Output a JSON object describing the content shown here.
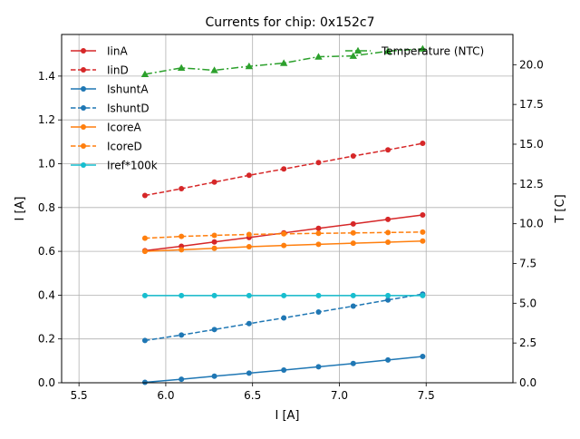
{
  "chart_data": {
    "type": "line",
    "title": "Currents for chip: 0x152c7",
    "xlabel": "I [A]",
    "ylabel": "I [A]",
    "y2label": "T [C]",
    "xlim": [
      5.4,
      8.0
    ],
    "ylim": [
      0.0,
      1.59
    ],
    "y2lim": [
      0.0,
      21.9
    ],
    "xticks": [
      "5.5",
      "6.0",
      "6.5",
      "7.0",
      "7.5"
    ],
    "yticks": [
      "0.0",
      "0.2",
      "0.4",
      "0.6",
      "0.8",
      "1.0",
      "1.2",
      "1.4"
    ],
    "y2ticks": [
      "0.0",
      "2.5",
      "5.0",
      "7.5",
      "10.0",
      "12.5",
      "15.0",
      "17.5",
      "20.0"
    ],
    "grid": true,
    "legend_left": "upper-left",
    "legend_right": "upper-right",
    "x": [
      5.88,
      6.09,
      6.28,
      6.48,
      6.68,
      6.88,
      7.08,
      7.28,
      7.48
    ],
    "series": [
      {
        "name": "IinA",
        "axis": "left",
        "color": "#d62728",
        "style": "solid",
        "marker": "circle",
        "values": [
          0.603,
          0.623,
          0.643,
          0.663,
          0.684,
          0.705,
          0.725,
          0.746,
          0.766
        ]
      },
      {
        "name": "IinD",
        "axis": "left",
        "color": "#d62728",
        "style": "dashed",
        "marker": "circle",
        "values": [
          0.855,
          0.886,
          0.916,
          0.947,
          0.976,
          1.005,
          1.035,
          1.063,
          1.093
        ]
      },
      {
        "name": "IshuntA",
        "axis": "left",
        "color": "#1f77b4",
        "style": "solid",
        "marker": "circle",
        "values": [
          0.002,
          0.016,
          0.03,
          0.044,
          0.058,
          0.073,
          0.088,
          0.104,
          0.12
        ]
      },
      {
        "name": "IshuntD",
        "axis": "left",
        "color": "#1f77b4",
        "style": "dashed",
        "marker": "circle",
        "values": [
          0.193,
          0.218,
          0.243,
          0.27,
          0.296,
          0.323,
          0.35,
          0.378,
          0.405
        ]
      },
      {
        "name": "IcoreA",
        "axis": "left",
        "color": "#ff7f0e",
        "style": "solid",
        "marker": "circle",
        "values": [
          0.6,
          0.607,
          0.614,
          0.621,
          0.627,
          0.632,
          0.637,
          0.642,
          0.647
        ]
      },
      {
        "name": "IcoreD",
        "axis": "left",
        "color": "#ff7f0e",
        "style": "dashed",
        "marker": "circle",
        "values": [
          0.66,
          0.668,
          0.673,
          0.677,
          0.68,
          0.682,
          0.684,
          0.686,
          0.688
        ]
      },
      {
        "name": "Iref*100k",
        "axis": "left",
        "color": "#17becf",
        "style": "solid",
        "marker": "circle",
        "values": [
          0.398,
          0.398,
          0.398,
          0.398,
          0.398,
          0.398,
          0.398,
          0.398,
          0.398
        ]
      },
      {
        "name": "Temperature (NTC)",
        "axis": "right",
        "color": "#2ca02c",
        "style": "dashdot",
        "marker": "triangle",
        "values": [
          19.4,
          19.8,
          19.65,
          19.9,
          20.1,
          20.5,
          20.55,
          20.85,
          21.0
        ]
      }
    ]
  }
}
